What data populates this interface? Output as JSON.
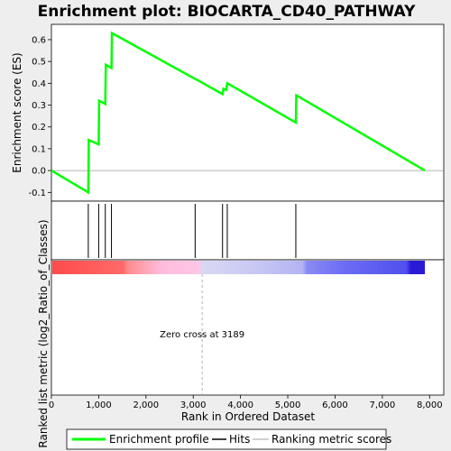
{
  "chart_data": {
    "type": "line",
    "title": "Enrichment plot: BIOCARTA_CD40_PATHWAY",
    "top_panel": {
      "ylabel": "Enrichment score (ES)",
      "ylim": [
        -0.14,
        0.67
      ],
      "yticks": [
        -0.1,
        0.0,
        0.1,
        0.2,
        0.3,
        0.4,
        0.5,
        0.6
      ],
      "ytick_labels": [
        "-0.1",
        "0.0",
        "0.1",
        "0.2",
        "0.3",
        "0.4",
        "0.5",
        "0.6"
      ],
      "series": [
        {
          "name": "Enrichment profile",
          "color": "#00ff00",
          "x": [
            0,
            780,
            790,
            1000,
            1010,
            1140,
            1150,
            1270,
            1280,
            3040,
            3090,
            3620,
            3640,
            3700,
            3720,
            5170,
            5180,
            7900
          ],
          "y": [
            0.0,
            -0.1,
            0.14,
            0.12,
            0.32,
            0.305,
            0.485,
            0.47,
            0.63,
            0.42,
            0.415,
            0.35,
            0.375,
            0.37,
            0.4,
            0.22,
            0.345,
            0.0
          ]
        }
      ]
    },
    "hits": {
      "name": "Hits",
      "x": [
        780,
        1000,
        1140,
        1270,
        3040,
        3620,
        3720,
        5170
      ]
    },
    "ranked_panel": {
      "ylabel": "Ranked list metric (log2_Ratio_of_Classes)",
      "zero_cross_label": "Zero cross at 3189",
      "zero_cross_x": 3189,
      "gradient_stops": [
        {
          "x": 0,
          "color": "#ff4a4a"
        },
        {
          "x": 1500,
          "color": "#ff6a6a"
        },
        {
          "x": 1600,
          "color": "#ff8c8c"
        },
        {
          "x": 2300,
          "color": "#ffbcdc"
        },
        {
          "x": 3100,
          "color": "#ffc6e6"
        },
        {
          "x": 3200,
          "color": "#d8d8f4"
        },
        {
          "x": 4300,
          "color": "#c8c8f4"
        },
        {
          "x": 5300,
          "color": "#b4b4f4"
        },
        {
          "x": 5400,
          "color": "#8a8af4"
        },
        {
          "x": 6200,
          "color": "#6c6cf4"
        },
        {
          "x": 7500,
          "color": "#5050ee"
        },
        {
          "x": 7600,
          "color": "#2a1ad6"
        },
        {
          "x": 7900,
          "color": "#2a1ad6"
        }
      ]
    },
    "xlabel": "Rank in Ordered Dataset",
    "xlim": [
      0,
      8300
    ],
    "xticks": [
      0,
      1000,
      2000,
      3000,
      4000,
      5000,
      6000,
      7000,
      8000
    ],
    "xtick_labels": [
      "0",
      "1,000",
      "2,000",
      "3,000",
      "4,000",
      "5,000",
      "6,000",
      "7,000",
      "8,000"
    ],
    "legend": {
      "placement": "bottom",
      "items": [
        {
          "label": "Enrichment profile",
          "color": "#00ff00"
        },
        {
          "label": "Hits",
          "color": "#000000"
        },
        {
          "label": "Ranking metric scores",
          "color": "#c0c0c0"
        }
      ]
    }
  }
}
